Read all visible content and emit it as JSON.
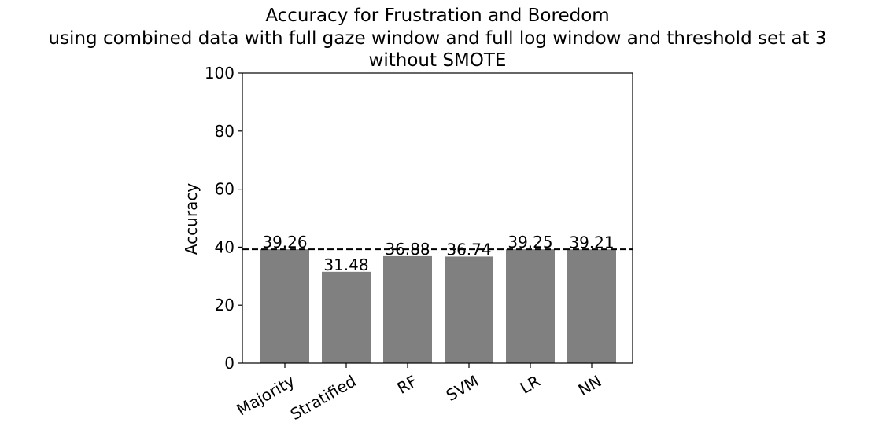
{
  "chart_data": {
    "type": "bar",
    "title_lines": [
      "Accuracy for Frustration and Boredom",
      "using combined data with full gaze window and full log window  and threshold set at 3",
      "without SMOTE"
    ],
    "xlabel": "",
    "ylabel": "Accuracy",
    "ylim": [
      0,
      100
    ],
    "yticks": [
      0,
      20,
      40,
      60,
      80,
      100
    ],
    "categories": [
      "Majority",
      "Stratified",
      "RF",
      "SVM",
      "LR",
      "NN"
    ],
    "values": [
      39.26,
      31.48,
      36.88,
      36.74,
      39.25,
      39.21
    ],
    "value_labels": [
      "39.26",
      "31.48",
      "36.88",
      "36.74",
      "39.25",
      "39.21"
    ],
    "reference_line": {
      "value": 39.26,
      "style": "dashed",
      "color": "#000000"
    },
    "bar_color": "#808080",
    "grid": false,
    "legend": "none"
  }
}
